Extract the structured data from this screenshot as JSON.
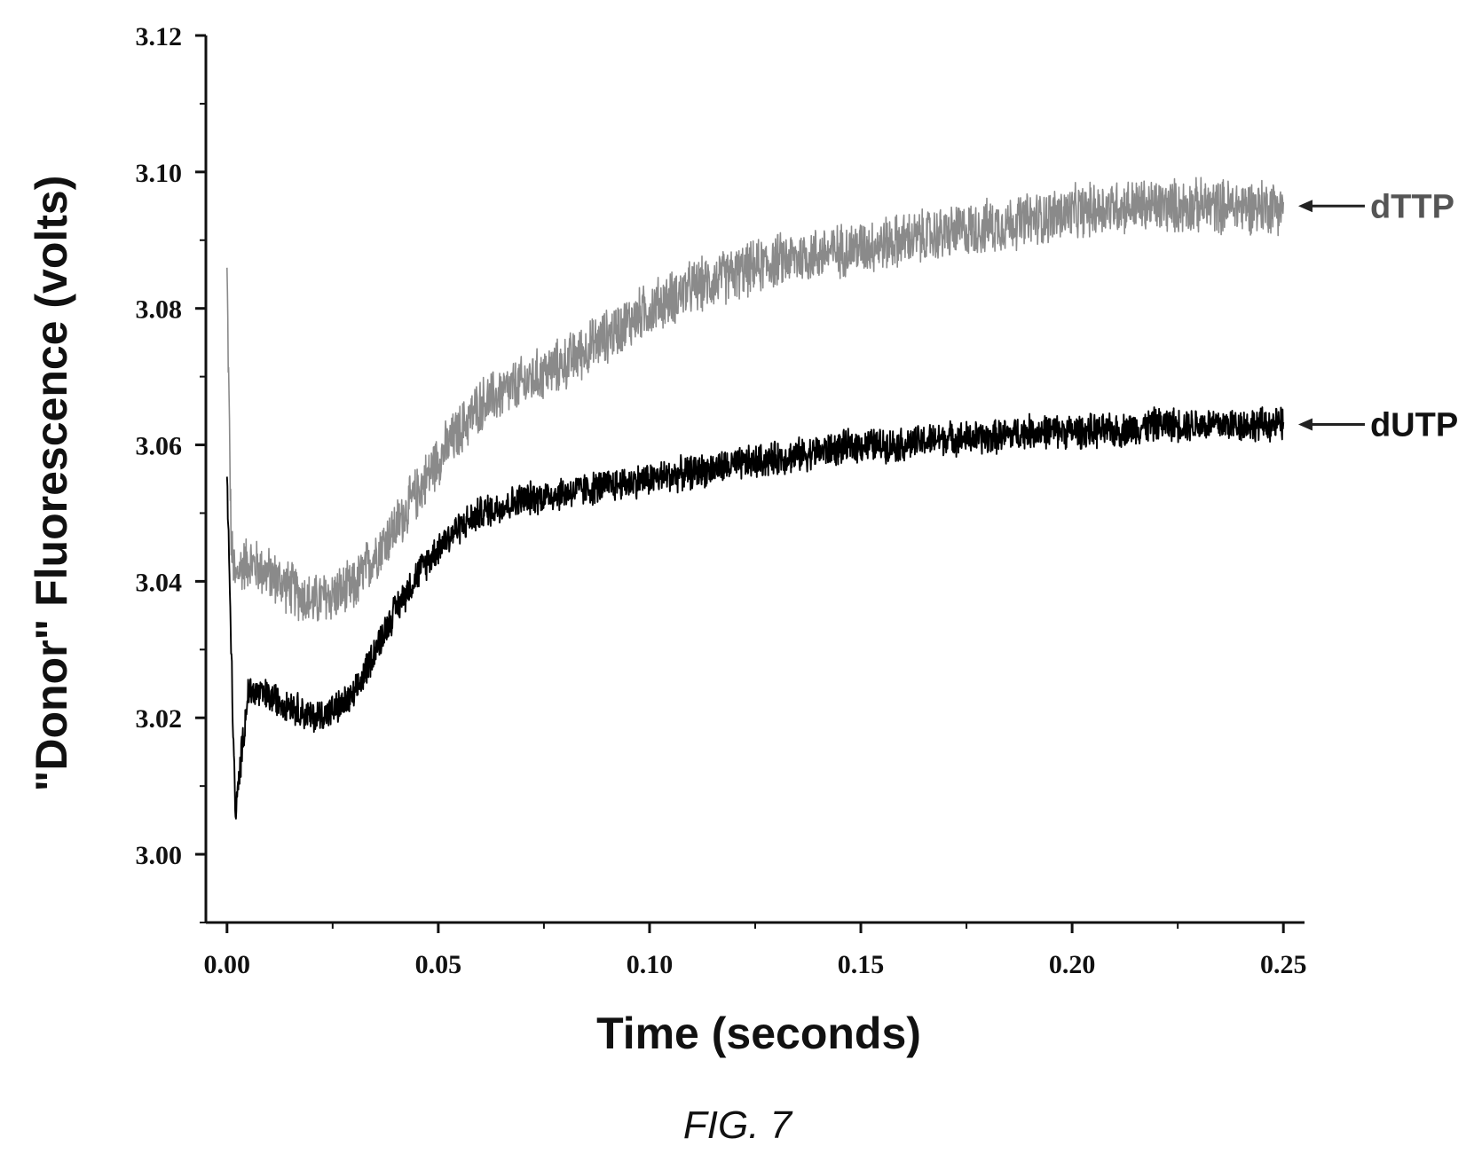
{
  "figure": {
    "caption": "FIG. 7"
  },
  "chart_data": {
    "type": "line",
    "title": "",
    "xlabel": "Time (seconds)",
    "ylabel": "\"Donor\" Fluorescence (volts)",
    "xlim": [
      -0.005,
      0.255
    ],
    "ylim": [
      2.99,
      3.12
    ],
    "x_ticks": [
      "0.00",
      "0.05",
      "0.10",
      "0.15",
      "0.20",
      "0.25"
    ],
    "y_ticks": [
      "3.00",
      "3.02",
      "3.04",
      "3.06",
      "3.08",
      "3.10",
      "3.12"
    ],
    "grid": false,
    "legend": "inline arrow labels at right end of each trace",
    "series": [
      {
        "name": "dTTP",
        "color": "#8a8a8a",
        "noise_amplitude": 0.0045,
        "x": [
          0.0,
          0.001,
          0.002,
          0.003,
          0.005,
          0.01,
          0.015,
          0.02,
          0.025,
          0.03,
          0.035,
          0.04,
          0.045,
          0.05,
          0.055,
          0.06,
          0.07,
          0.08,
          0.09,
          0.1,
          0.11,
          0.12,
          0.13,
          0.14,
          0.15,
          0.16,
          0.17,
          0.18,
          0.19,
          0.2,
          0.21,
          0.22,
          0.23,
          0.24,
          0.25
        ],
        "y": [
          3.085,
          3.045,
          3.04,
          3.042,
          3.043,
          3.041,
          3.039,
          3.037,
          3.038,
          3.039,
          3.044,
          3.048,
          3.053,
          3.058,
          3.062,
          3.066,
          3.069,
          3.072,
          3.076,
          3.08,
          3.083,
          3.085,
          3.087,
          3.088,
          3.089,
          3.09,
          3.091,
          3.092,
          3.093,
          3.094,
          3.095,
          3.095,
          3.095,
          3.095,
          3.095
        ]
      },
      {
        "name": "dUTP",
        "color": "#000000",
        "noise_amplitude": 0.0028,
        "x": [
          0.0,
          0.001,
          0.002,
          0.003,
          0.005,
          0.01,
          0.015,
          0.02,
          0.025,
          0.03,
          0.035,
          0.04,
          0.045,
          0.05,
          0.055,
          0.06,
          0.07,
          0.08,
          0.09,
          0.1,
          0.11,
          0.12,
          0.13,
          0.14,
          0.15,
          0.16,
          0.17,
          0.18,
          0.19,
          0.2,
          0.21,
          0.22,
          0.23,
          0.24,
          0.25
        ],
        "y": [
          3.055,
          3.03,
          3.005,
          3.012,
          3.024,
          3.023,
          3.022,
          3.02,
          3.021,
          3.023,
          3.03,
          3.036,
          3.041,
          3.045,
          3.048,
          3.05,
          3.052,
          3.053,
          3.054,
          3.055,
          3.056,
          3.057,
          3.058,
          3.059,
          3.06,
          3.06,
          3.061,
          3.061,
          3.062,
          3.062,
          3.062,
          3.063,
          3.063,
          3.063,
          3.063
        ]
      }
    ],
    "annotations": [
      {
        "text": "dTTP",
        "series": "dTTP",
        "arrow": true
      },
      {
        "text": "dUTP",
        "series": "dUTP",
        "arrow": true
      }
    ]
  }
}
